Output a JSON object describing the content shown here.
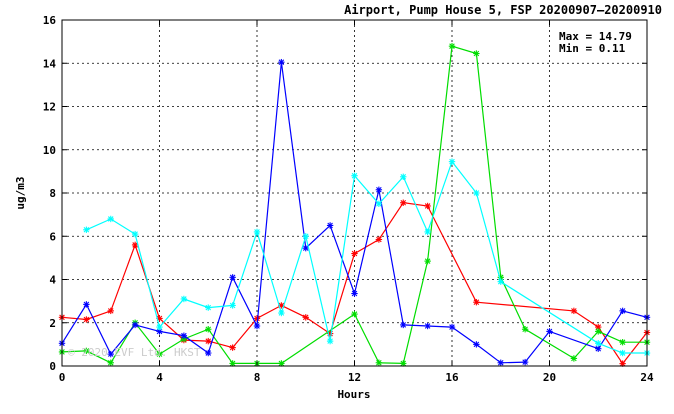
{
  "chart_data": {
    "type": "line",
    "title": "Airport, Pump House 5, FSP 20200907–20200910",
    "xlabel": "Hours",
    "ylabel": "ug/m3",
    "xlim": [
      0,
      24
    ],
    "ylim": [
      0,
      16
    ],
    "xticks": [
      0,
      4,
      8,
      12,
      16,
      20,
      24
    ],
    "yticks": [
      0,
      2,
      4,
      6,
      8,
      10,
      12,
      14,
      16
    ],
    "grid": true,
    "stats": {
      "max_label": "Max = 14.79",
      "min_label": "Min =  0.11"
    },
    "watermark": "© 2020 EVF Ltd. HKST",
    "series": [
      {
        "color": "#ff0000",
        "x": [
          0,
          1,
          2,
          3,
          4,
          5,
          6,
          7,
          8,
          9,
          10,
          11,
          12,
          13,
          14,
          15,
          17,
          21,
          22,
          23,
          24
        ],
        "y": [
          2.25,
          2.15,
          2.55,
          5.6,
          2.2,
          1.2,
          1.15,
          0.85,
          2.2,
          2.8,
          2.25,
          1.5,
          5.2,
          5.85,
          7.55,
          7.4,
          2.95,
          2.55,
          1.8,
          0.11,
          1.55
        ]
      },
      {
        "color": "#00dd00",
        "x": [
          0,
          1,
          2,
          3,
          4,
          5,
          6,
          7,
          8,
          9,
          12,
          13,
          14,
          15,
          16,
          17,
          18,
          19,
          21,
          22,
          23,
          24
        ],
        "y": [
          0.65,
          0.7,
          0.15,
          2.0,
          0.55,
          1.25,
          1.7,
          0.12,
          0.12,
          0.12,
          2.4,
          0.15,
          0.12,
          4.85,
          14.79,
          14.45,
          4.1,
          1.7,
          0.35,
          1.6,
          1.1,
          1.1
        ]
      },
      {
        "color": "#0000ff",
        "x": [
          0,
          1,
          2,
          3,
          4,
          5,
          6,
          7,
          8,
          9,
          10,
          11,
          12,
          13,
          14,
          15,
          16,
          17,
          18,
          19,
          20,
          22,
          23,
          24
        ],
        "y": [
          1.05,
          2.85,
          0.55,
          1.9,
          1.6,
          1.4,
          0.6,
          4.1,
          1.85,
          14.05,
          5.45,
          6.5,
          3.35,
          8.15,
          1.9,
          1.85,
          1.8,
          1.0,
          0.15,
          0.18,
          1.6,
          0.8,
          2.55,
          2.25
        ]
      },
      {
        "color": "#00ffff",
        "x": [
          1,
          2,
          3,
          4,
          5,
          6,
          7,
          8,
          9,
          10,
          11,
          12,
          13,
          14,
          15,
          16,
          17,
          18,
          22,
          23,
          24
        ],
        "y": [
          6.3,
          6.8,
          6.1,
          1.8,
          3.1,
          2.7,
          2.8,
          6.2,
          2.45,
          6.0,
          1.15,
          8.8,
          7.5,
          8.75,
          6.2,
          9.45,
          8.0,
          3.9,
          1.05,
          0.6,
          0.6
        ]
      }
    ]
  }
}
